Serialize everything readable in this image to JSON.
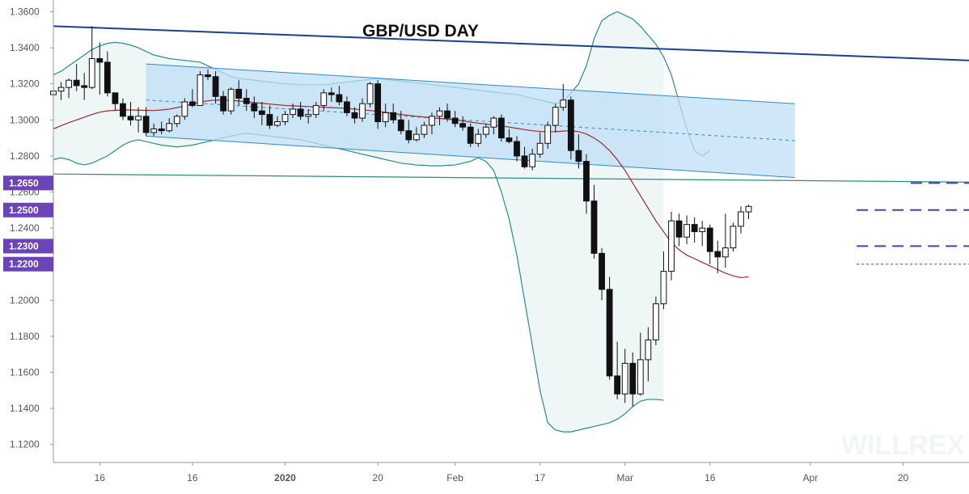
{
  "chart_data": {
    "type": "candlestick",
    "title": "GBP/USD DAY",
    "ylim": [
      1.11,
      1.3665
    ],
    "y_ticks": [
      "1.1200",
      "1.1400",
      "1.1600",
      "1.1800",
      "1.2000",
      "1.2200",
      "1.2400",
      "1.2500",
      "1.2600",
      "1.2800",
      "1.3000",
      "1.3200",
      "1.3400",
      "1.3600"
    ],
    "x_ticks": [
      {
        "day": 6,
        "label": "16",
        "bold": false
      },
      {
        "day": 18,
        "label": "16",
        "bold": false
      },
      {
        "day": 30,
        "label": "2020",
        "bold": true
      },
      {
        "day": 42,
        "label": "20",
        "bold": false
      },
      {
        "day": 52,
        "label": "Feb",
        "bold": false
      },
      {
        "day": 63,
        "label": "17",
        "bold": false
      },
      {
        "day": 74,
        "label": "Mar",
        "bold": false
      },
      {
        "day": 85,
        "label": "16",
        "bold": false
      },
      {
        "day": 98,
        "label": "Apr",
        "bold": false
      },
      {
        "day": 110,
        "label": "20",
        "bold": false
      }
    ],
    "price_badges": [
      {
        "label": "1.2650",
        "value": 1.265
      },
      {
        "label": "1.2500",
        "value": 1.25
      },
      {
        "label": "1.2300",
        "value": 1.23
      },
      {
        "label": "1.2200",
        "value": 1.22
      }
    ],
    "candles": [
      [
        1.314,
        1.318,
        1.306,
        1.316
      ],
      [
        1.316,
        1.321,
        1.311,
        1.318
      ],
      [
        1.318,
        1.323,
        1.312,
        1.322
      ],
      [
        1.322,
        1.331,
        1.316,
        1.319
      ],
      [
        1.319,
        1.326,
        1.311,
        1.318
      ],
      [
        1.318,
        1.352,
        1.317,
        1.334
      ],
      [
        1.334,
        1.343,
        1.314,
        1.332
      ],
      [
        1.332,
        1.338,
        1.313,
        1.315
      ],
      [
        1.315,
        1.315,
        1.305,
        1.309
      ],
      [
        1.309,
        1.312,
        1.3,
        1.302
      ],
      [
        1.302,
        1.31,
        1.297,
        1.3
      ],
      [
        1.3,
        1.307,
        1.293,
        1.302
      ],
      [
        1.302,
        1.307,
        1.291,
        1.293
      ],
      [
        1.293,
        1.298,
        1.291,
        1.295
      ],
      [
        1.295,
        1.299,
        1.292,
        1.294
      ],
      [
        1.294,
        1.301,
        1.293,
        1.298
      ],
      [
        1.298,
        1.303,
        1.296,
        1.302
      ],
      [
        1.302,
        1.312,
        1.3,
        1.31
      ],
      [
        1.31,
        1.317,
        1.307,
        1.308
      ],
      [
        1.308,
        1.327,
        1.308,
        1.325
      ],
      [
        1.325,
        1.328,
        1.322,
        1.324
      ],
      [
        1.324,
        1.327,
        1.309,
        1.313
      ],
      [
        1.313,
        1.316,
        1.303,
        1.305
      ],
      [
        1.305,
        1.318,
        1.303,
        1.317
      ],
      [
        1.317,
        1.322,
        1.308,
        1.312
      ],
      [
        1.312,
        1.317,
        1.305,
        1.309
      ],
      [
        1.309,
        1.313,
        1.301,
        1.305
      ],
      [
        1.305,
        1.31,
        1.297,
        1.303
      ],
      [
        1.303,
        1.308,
        1.295,
        1.297
      ],
      [
        1.297,
        1.302,
        1.296,
        1.299
      ],
      [
        1.299,
        1.305,
        1.297,
        1.303
      ],
      [
        1.303,
        1.309,
        1.301,
        1.306
      ],
      [
        1.306,
        1.31,
        1.3,
        1.302
      ],
      [
        1.302,
        1.306,
        1.298,
        1.303
      ],
      [
        1.303,
        1.31,
        1.301,
        1.308
      ],
      [
        1.308,
        1.317,
        1.305,
        1.315
      ],
      [
        1.315,
        1.318,
        1.31,
        1.314
      ],
      [
        1.314,
        1.319,
        1.308,
        1.31
      ],
      [
        1.31,
        1.313,
        1.302,
        1.304
      ],
      [
        1.304,
        1.307,
        1.298,
        1.301
      ],
      [
        1.301,
        1.312,
        1.299,
        1.309
      ],
      [
        1.309,
        1.321,
        1.307,
        1.32
      ],
      [
        1.32,
        1.322,
        1.295,
        1.299
      ],
      [
        1.299,
        1.309,
        1.296,
        1.304
      ],
      [
        1.304,
        1.309,
        1.298,
        1.3
      ],
      [
        1.3,
        1.305,
        1.292,
        1.294
      ],
      [
        1.294,
        1.3,
        1.287,
        1.289
      ],
      [
        1.289,
        1.296,
        1.288,
        1.292
      ],
      [
        1.292,
        1.299,
        1.29,
        1.297
      ],
      [
        1.297,
        1.304,
        1.292,
        1.302
      ],
      [
        1.302,
        1.307,
        1.297,
        1.305
      ],
      [
        1.305,
        1.309,
        1.299,
        1.301
      ],
      [
        1.301,
        1.305,
        1.296,
        1.298
      ],
      [
        1.298,
        1.302,
        1.294,
        1.296
      ],
      [
        1.296,
        1.298,
        1.285,
        1.287
      ],
      [
        1.287,
        1.295,
        1.285,
        1.292
      ],
      [
        1.292,
        1.298,
        1.29,
        1.296
      ],
      [
        1.296,
        1.302,
        1.292,
        1.301
      ],
      [
        1.301,
        1.303,
        1.288,
        1.29
      ],
      [
        1.29,
        1.295,
        1.287,
        1.288
      ],
      [
        1.288,
        1.291,
        1.277,
        1.28
      ],
      [
        1.28,
        1.285,
        1.273,
        1.274
      ],
      [
        1.274,
        1.284,
        1.272,
        1.281
      ],
      [
        1.281,
        1.293,
        1.279,
        1.287
      ],
      [
        1.287,
        1.299,
        1.284,
        1.297
      ],
      [
        1.297,
        1.309,
        1.293,
        1.307
      ],
      [
        1.307,
        1.32,
        1.305,
        1.311
      ],
      [
        1.311,
        1.313,
        1.278,
        1.283
      ],
      [
        1.283,
        1.292,
        1.273,
        1.277
      ],
      [
        1.277,
        1.281,
        1.248,
        1.255
      ],
      [
        1.255,
        1.264,
        1.223,
        1.226
      ],
      [
        1.226,
        1.229,
        1.2,
        1.206
      ],
      [
        1.206,
        1.213,
        1.156,
        1.158
      ],
      [
        1.158,
        1.177,
        1.145,
        1.148
      ],
      [
        1.148,
        1.173,
        1.143,
        1.165
      ],
      [
        1.165,
        1.171,
        1.141,
        1.148
      ],
      [
        1.148,
        1.182,
        1.147,
        1.167
      ],
      [
        1.167,
        1.185,
        1.155,
        1.178
      ],
      [
        1.178,
        1.202,
        1.175,
        1.198
      ],
      [
        1.198,
        1.227,
        1.195,
        1.216
      ],
      [
        1.216,
        1.249,
        1.211,
        1.244
      ],
      [
        1.244,
        1.248,
        1.23,
        1.235
      ],
      [
        1.235,
        1.247,
        1.231,
        1.242
      ],
      [
        1.242,
        1.246,
        1.232,
        1.238
      ],
      [
        1.238,
        1.244,
        1.23,
        1.24
      ],
      [
        1.24,
        1.242,
        1.22,
        1.227
      ],
      [
        1.227,
        1.233,
        1.215,
        1.224
      ],
      [
        1.224,
        1.248,
        1.218,
        1.229
      ],
      [
        1.229,
        1.243,
        1.227,
        1.241
      ],
      [
        1.241,
        1.252,
        1.237,
        1.249
      ],
      [
        1.249,
        1.253,
        1.245,
        1.252
      ]
    ],
    "ma_red": [
      1.295,
      1.2968,
      1.2985,
      1.3,
      1.3015,
      1.303,
      1.3043,
      1.305,
      1.3053,
      1.3055,
      1.3055,
      1.3054,
      1.3053,
      1.3052,
      1.3055,
      1.306,
      1.3068,
      1.3078,
      1.3088,
      1.3098,
      1.3106,
      1.311,
      1.311,
      1.3108,
      1.3105,
      1.31,
      1.3096,
      1.3092,
      1.3088,
      1.3084,
      1.308,
      1.3078,
      1.3076,
      1.3074,
      1.3072,
      1.307,
      1.3068,
      1.3066,
      1.3064,
      1.306,
      1.3056,
      1.3052,
      1.3047,
      1.3042,
      1.3036,
      1.303,
      1.3025,
      1.302,
      1.3016,
      1.3012,
      1.3008,
      1.3004,
      1.3,
      1.2995,
      1.2988,
      1.2982,
      1.2977,
      1.2972,
      1.2966,
      1.296,
      1.2953,
      1.2946,
      1.294,
      1.2936,
      1.2934,
      1.2935,
      1.2938,
      1.294,
      1.2935,
      1.2922,
      1.29,
      1.287,
      1.283,
      1.278,
      1.272,
      1.265,
      1.258,
      1.251,
      1.244,
      1.238,
      1.232,
      1.228,
      1.225,
      1.223,
      1.221,
      1.219,
      1.217,
      1.215,
      1.2135,
      1.2125,
      1.213
    ],
    "bb_upper": [
      1.325,
      1.327,
      1.33,
      1.333,
      1.336,
      1.339,
      1.341,
      1.3425,
      1.343,
      1.3425,
      1.3415,
      1.34,
      1.338,
      1.336,
      1.335,
      1.334,
      1.3335,
      1.333,
      1.3325,
      1.332,
      1.33,
      1.328,
      1.326,
      1.324,
      1.323,
      1.3225,
      1.322,
      1.3215,
      1.321,
      1.3205,
      1.32,
      1.3198,
      1.3195,
      1.3195,
      1.3195,
      1.3195,
      1.32,
      1.3205,
      1.321,
      1.3215,
      1.322,
      1.3225,
      1.323,
      1.3225,
      1.322,
      1.3215,
      1.321,
      1.3205,
      1.32,
      1.3195,
      1.319,
      1.3185,
      1.318,
      1.3175,
      1.317,
      1.3165,
      1.316,
      1.3155,
      1.315,
      1.3145,
      1.314,
      1.313,
      1.312,
      1.311,
      1.31,
      1.309,
      1.31,
      1.315,
      1.32,
      1.33,
      1.345,
      1.355,
      1.358,
      1.36,
      1.358,
      1.356,
      1.352,
      1.347,
      1.342,
      1.335,
      1.325,
      1.31,
      1.295,
      1.283,
      1.28,
      1.283
    ],
    "bb_lower": [
      1.278,
      1.279,
      1.278,
      1.276,
      1.275,
      1.276,
      1.278,
      1.28,
      1.283,
      1.286,
      1.288,
      1.289,
      1.288,
      1.287,
      1.286,
      1.2855,
      1.285,
      1.2855,
      1.286,
      1.287,
      1.288,
      1.289,
      1.29,
      1.291,
      1.292,
      1.2925,
      1.292,
      1.2915,
      1.291,
      1.2905,
      1.29,
      1.2895,
      1.289,
      1.288,
      1.287,
      1.286,
      1.285,
      1.284,
      1.283,
      1.282,
      1.281,
      1.28,
      1.279,
      1.278,
      1.277,
      1.276,
      1.2755,
      1.275,
      1.2748,
      1.2745,
      1.2745,
      1.2748,
      1.275,
      1.276,
      1.277,
      1.279,
      1.277,
      1.272,
      1.26,
      1.245,
      1.225,
      1.2,
      1.175,
      1.15,
      1.132,
      1.128,
      1.127,
      1.127,
      1.128,
      1.129,
      1.13,
      1.131,
      1.132,
      1.134,
      1.137,
      1.141,
      1.144,
      1.145,
      1.145,
      1.1445
    ],
    "bb_lower_start": 0,
    "bb_upper_start": 0,
    "bb_lower_offset": 0,
    "channel": {
      "top": [
        [
          12,
          1.331
        ],
        [
          96,
          1.309
        ]
      ],
      "bottom": [
        [
          12,
          1.291
        ],
        [
          96,
          1.268
        ]
      ],
      "mid": [
        [
          12,
          1.311
        ],
        [
          96,
          1.2885
        ]
      ]
    },
    "trendline": [
      [
        0,
        1.352
      ],
      [
        124,
        1.333
      ]
    ],
    "support_line": [
      [
        0,
        1.27
      ],
      [
        124,
        1.2655
      ]
    ],
    "levels": [
      {
        "value": 1.265,
        "from": 111,
        "to": 124,
        "style": "dashed"
      },
      {
        "value": 1.25,
        "from": 104,
        "to": 124,
        "style": "dashed"
      },
      {
        "value": 1.23,
        "from": 104,
        "to": 124,
        "style": "dashed"
      },
      {
        "value": 1.22,
        "from": 104,
        "to": 124,
        "style": "dotted"
      }
    ]
  },
  "colors": {
    "candle_up": "#ffffff",
    "candle_down": "#111111",
    "candle_outline": "#111111",
    "bollinger": "#2a8c8a",
    "bollinger_fill": "#eef7f6",
    "ma": "#9b2a2a",
    "channel_fill": "#bfdff5",
    "channel_line": "#2f8ac8",
    "trendline": "#1d3f8f",
    "level": "#5b3aa3",
    "badge": "#6b44b8",
    "grid": "#e8e8e8"
  },
  "watermark": "WILLREX"
}
